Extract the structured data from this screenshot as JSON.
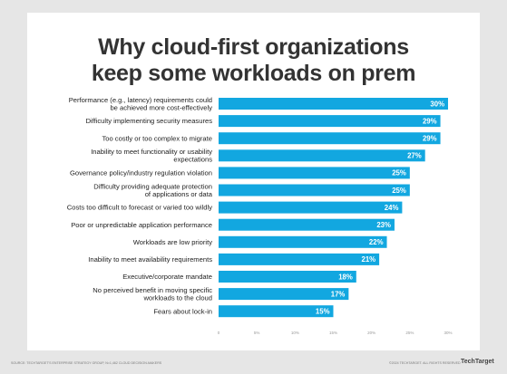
{
  "chart_data": {
    "type": "bar",
    "orientation": "horizontal",
    "title_lines": [
      "Why cloud-first organizations",
      "keep some workloads on prem"
    ],
    "categories": [
      [
        "Performance (e.g., latency) requirements could",
        "be achieved more cost-effectively"
      ],
      [
        "Difficulty implementing security measures"
      ],
      [
        "Too costly or too complex to migrate"
      ],
      [
        "Inability to meet functionality or usability",
        "expectations"
      ],
      [
        "Governance policy/industry regulation violation"
      ],
      [
        "Difficulty providing adequate protection",
        "of applications or data"
      ],
      [
        "Costs too difficult to forecast or varied too wildly"
      ],
      [
        "Poor or unpredictable application performance"
      ],
      [
        "Workloads are low priority"
      ],
      [
        "Inability to meet availability requirements"
      ],
      [
        "Executive/corporate mandate"
      ],
      [
        "No perceived benefit in moving specific",
        "workloads to the cloud"
      ],
      [
        "Fears about lock-in"
      ]
    ],
    "values": [
      30,
      29,
      29,
      27,
      25,
      25,
      24,
      23,
      22,
      21,
      18,
      17,
      15
    ],
    "value_labels": [
      "30%",
      "29%",
      "29%",
      "27%",
      "25%",
      "25%",
      "24%",
      "23%",
      "22%",
      "21%",
      "18%",
      "17%",
      "15%"
    ],
    "xlim": [
      0,
      30
    ],
    "x_ticks": [
      "0",
      "5%",
      "10%",
      "15%",
      "20%",
      "25%",
      "30%"
    ],
    "bar_color": "#12a7e0",
    "grid": false
  },
  "footer": {
    "source": "SOURCE: TECHTARGET'S ENTERPRISE STRATEGY GROUP, N=1,462 CLOUD DECISION-MAKERS",
    "copyright": "©2024 TECHTARGET. ALL RIGHTS RESERVED",
    "brand": "TechTarget"
  }
}
